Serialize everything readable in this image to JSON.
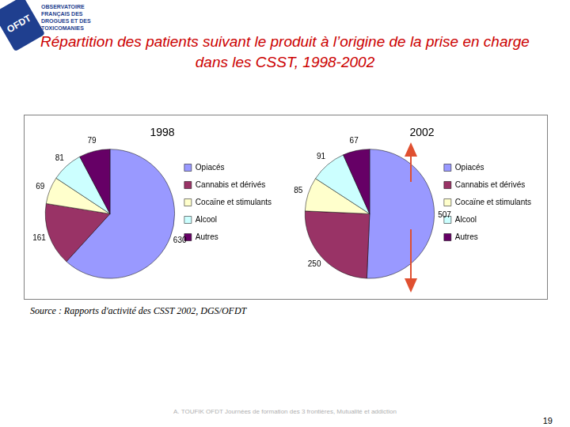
{
  "logo": {
    "badge": "OFDT",
    "text": "OBSERVATOIRE FRANÇAIS DES DROGUES ET DES TOXICOMANIES"
  },
  "title": "Répartition des patients suivant le produit à l’origine de la prise en charge dans les CSST, 1998-2002",
  "source": "Source : Rapports d'activité des CSST 2002, DGS/OFDT",
  "footer": "A. TOUFIK OFDT Journées de formation des 3 frontières, Mutualité et addiction",
  "page_number": "19",
  "chart_data": [
    {
      "type": "pie",
      "title": "1998",
      "categories": [
        "Opiacés",
        "Cannabis et dérivés",
        "Cocaïne et stimulants",
        "Alcool",
        "Autres"
      ],
      "values": [
        630,
        161,
        69,
        81,
        79
      ],
      "colors": [
        "#9999ff",
        "#993366",
        "#ffffcc",
        "#ccffff",
        "#660066"
      ],
      "data_labels": true,
      "legend": "right"
    },
    {
      "type": "pie",
      "title": "2002",
      "categories": [
        "Opiacés",
        "Cannabis et dérivés",
        "Cocaïne et stimulants",
        "Alcool",
        "Autres"
      ],
      "values": [
        507,
        250,
        85,
        91,
        67
      ],
      "colors": [
        "#9999ff",
        "#993366",
        "#ffffcc",
        "#ccffff",
        "#660066"
      ],
      "data_labels": true,
      "legend": "right"
    }
  ]
}
